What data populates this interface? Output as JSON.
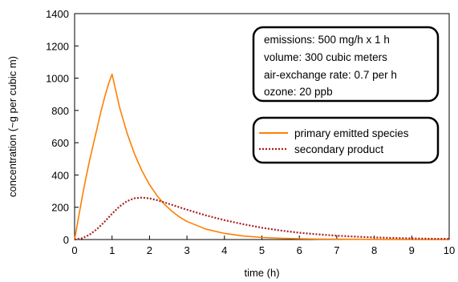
{
  "chart_data": {
    "type": "line",
    "xlabel": "time (h)",
    "ylabel": "concentration (~g per cubic m)",
    "xlim": [
      0,
      10
    ],
    "ylim": [
      0,
      1400
    ],
    "xticks": [
      "0",
      "1",
      "2",
      "3",
      "4",
      "5",
      "6",
      "7",
      "8",
      "9",
      "10"
    ],
    "yticks": [
      "0",
      "200",
      "400",
      "600",
      "800",
      "1000",
      "1200",
      "1400"
    ],
    "grid": false,
    "legend_position": "right",
    "annotation": [
      "emissions: 500 mg/h x 1 h",
      "volume: 300 cubic meters",
      "air-exchange rate: 0.7 per h",
      "ozone: 20 ppb"
    ],
    "series": [
      {
        "name": "primary emitted species",
        "color": "#ff7f00",
        "style": "solid",
        "x": [
          0,
          0.1,
          0.2,
          0.3,
          0.4,
          0.5,
          0.6,
          0.7,
          0.8,
          0.9,
          1.0,
          1.2,
          1.4,
          1.6,
          1.8,
          2.0,
          2.2,
          2.4,
          2.6,
          2.8,
          3.0,
          3.5,
          4.0,
          4.5,
          5.0,
          5.5,
          6.0,
          6.5,
          7.0,
          8.0,
          9.0,
          10.0
        ],
        "values": [
          0,
          130,
          260,
          380,
          490,
          590,
          690,
          790,
          880,
          960,
          1025,
          820,
          660,
          530,
          425,
          340,
          272,
          218,
          175,
          140,
          112,
          65,
          38,
          22,
          13,
          8,
          5,
          3,
          2,
          1,
          0,
          0
        ]
      },
      {
        "name": "secondary product",
        "color": "#aa1e1e",
        "style": "dotted",
        "x": [
          0,
          0.2,
          0.4,
          0.6,
          0.8,
          1.0,
          1.2,
          1.4,
          1.6,
          1.8,
          2.0,
          2.2,
          2.4,
          2.6,
          2.8,
          3.0,
          3.5,
          4.0,
          4.5,
          5.0,
          5.5,
          6.0,
          6.5,
          7.0,
          7.5,
          8.0,
          8.5,
          9.0,
          9.5,
          10.0
        ],
        "values": [
          0,
          8,
          30,
          65,
          110,
          160,
          205,
          238,
          256,
          260,
          255,
          244,
          230,
          215,
          200,
          185,
          150,
          120,
          95,
          73,
          56,
          42,
          32,
          24,
          18,
          13,
          10,
          7,
          5,
          4
        ]
      }
    ]
  }
}
